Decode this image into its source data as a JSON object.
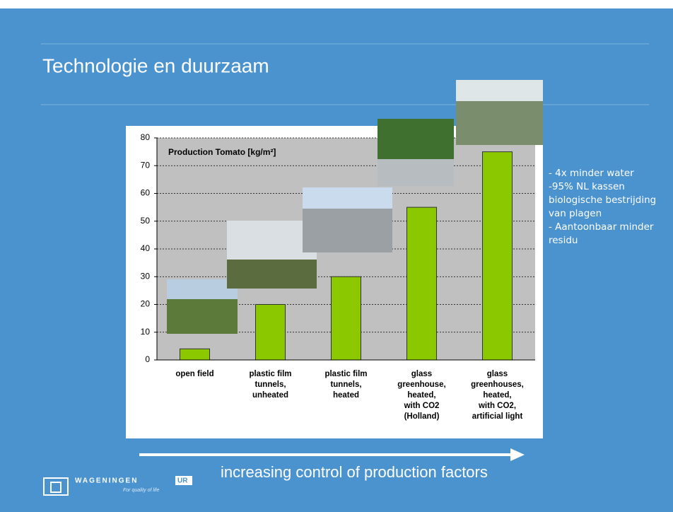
{
  "slide": {
    "title": "Technologie en duurzaam",
    "notes": [
      "- 4x minder water",
      "-95% NL kassen biologische bestrijding van plagen",
      "- Aantoonbaar minder residu"
    ],
    "footer": "increasing  control of production  factors",
    "logo": {
      "name": "WAGENINGEN",
      "suffix": "UR",
      "tagline": "For quality of life"
    }
  },
  "chart_data": {
    "type": "bar",
    "title": "Production Tomato [kg/m²]",
    "categories": [
      "open field",
      "plastic film\ntunnels,\nunheated",
      "plastic film\ntunnels,\nheated",
      "glass\ngreenhouse,\nheated,\nwith CO2\n(Holland)",
      "glass\ngreenhouses,\nheated,\nwith CO2,\nartificial light"
    ],
    "values": [
      4,
      20,
      30,
      55,
      75
    ],
    "color": "#8cc800",
    "ylim": [
      0,
      80
    ],
    "yticks": [
      0,
      10,
      20,
      30,
      40,
      50,
      60,
      70,
      80
    ],
    "grid": true
  }
}
